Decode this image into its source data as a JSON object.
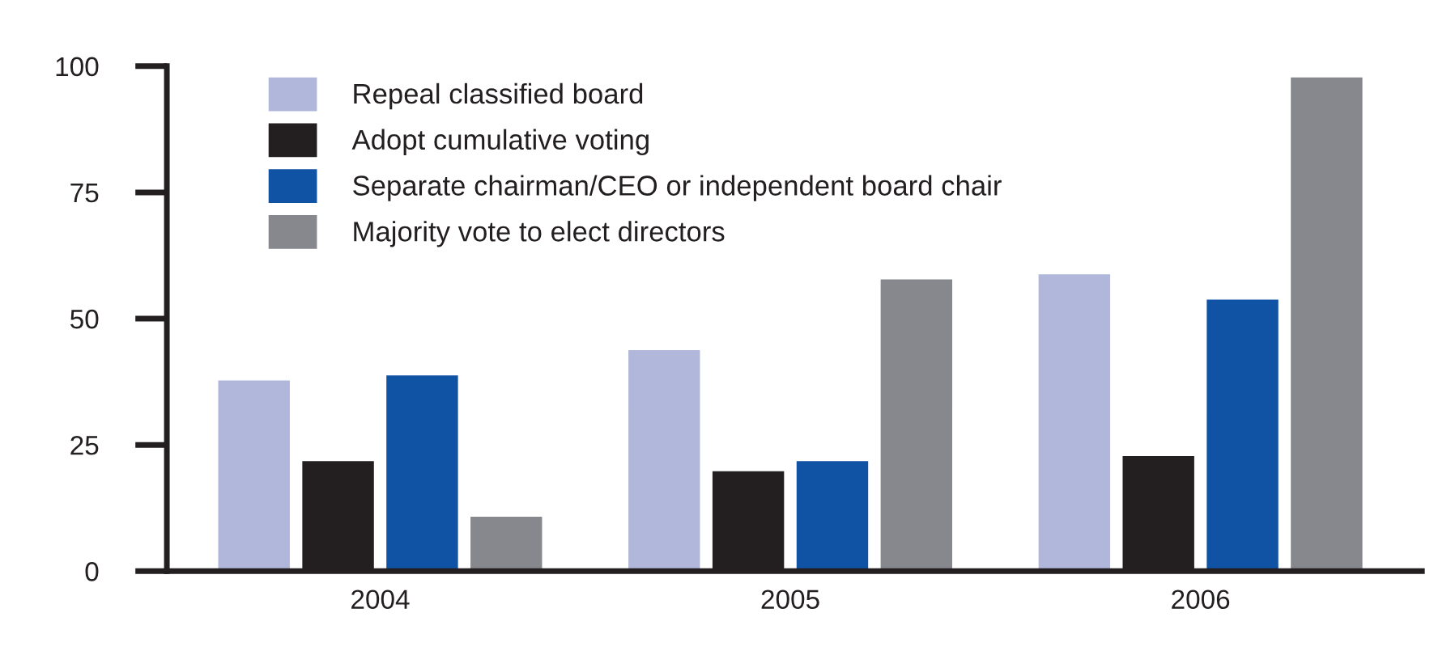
{
  "chart_data": {
    "type": "bar",
    "categories": [
      "2004",
      "2005",
      "2006"
    ],
    "series": [
      {
        "name": "Repeal classified board",
        "color": "#b0b7da",
        "values": [
          38,
          44,
          59
        ]
      },
      {
        "name": "Adopt cumulative voting",
        "color": "#231f20",
        "values": [
          22,
          20,
          23
        ]
      },
      {
        "name": "Separate chairman/CEO or independent board chair",
        "color": "#1052a3",
        "values": [
          39,
          22,
          54
        ]
      },
      {
        "name": "Majority vote to elect directors",
        "color": "#87888d",
        "values": [
          11,
          58,
          98
        ]
      }
    ],
    "ylim": [
      0,
      100
    ],
    "yticks": [
      0,
      25,
      50,
      75,
      100
    ],
    "grid": false,
    "legend": "top left"
  }
}
